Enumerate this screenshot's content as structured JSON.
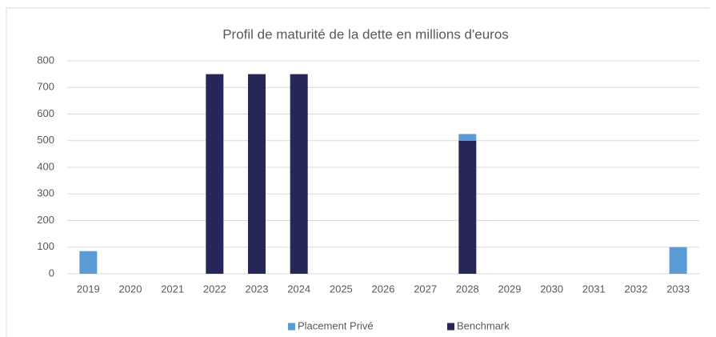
{
  "chart_data": {
    "type": "stacked_bar",
    "title": "Profil de maturité de la dette en millions d'euros",
    "categories": [
      "2019",
      "2020",
      "2021",
      "2022",
      "2023",
      "2024",
      "2025",
      "2026",
      "2027",
      "2028",
      "2029",
      "2030",
      "2031",
      "2032",
      "2033"
    ],
    "series": [
      {
        "name": "Placement Privé",
        "color": "#5b9bd5",
        "values": [
          85,
          null,
          null,
          null,
          null,
          null,
          null,
          null,
          null,
          25,
          null,
          null,
          null,
          null,
          100
        ]
      },
      {
        "name": "Benchmark",
        "color": "#262659",
        "values": [
          null,
          null,
          null,
          750,
          750,
          750,
          null,
          null,
          null,
          500,
          null,
          null,
          null,
          null,
          null
        ]
      }
    ],
    "ylim": [
      0,
      800
    ],
    "yticks": [
      0,
      100,
      200,
      300,
      400,
      500,
      600,
      700,
      800
    ],
    "grid": true,
    "legend": "bottom"
  }
}
